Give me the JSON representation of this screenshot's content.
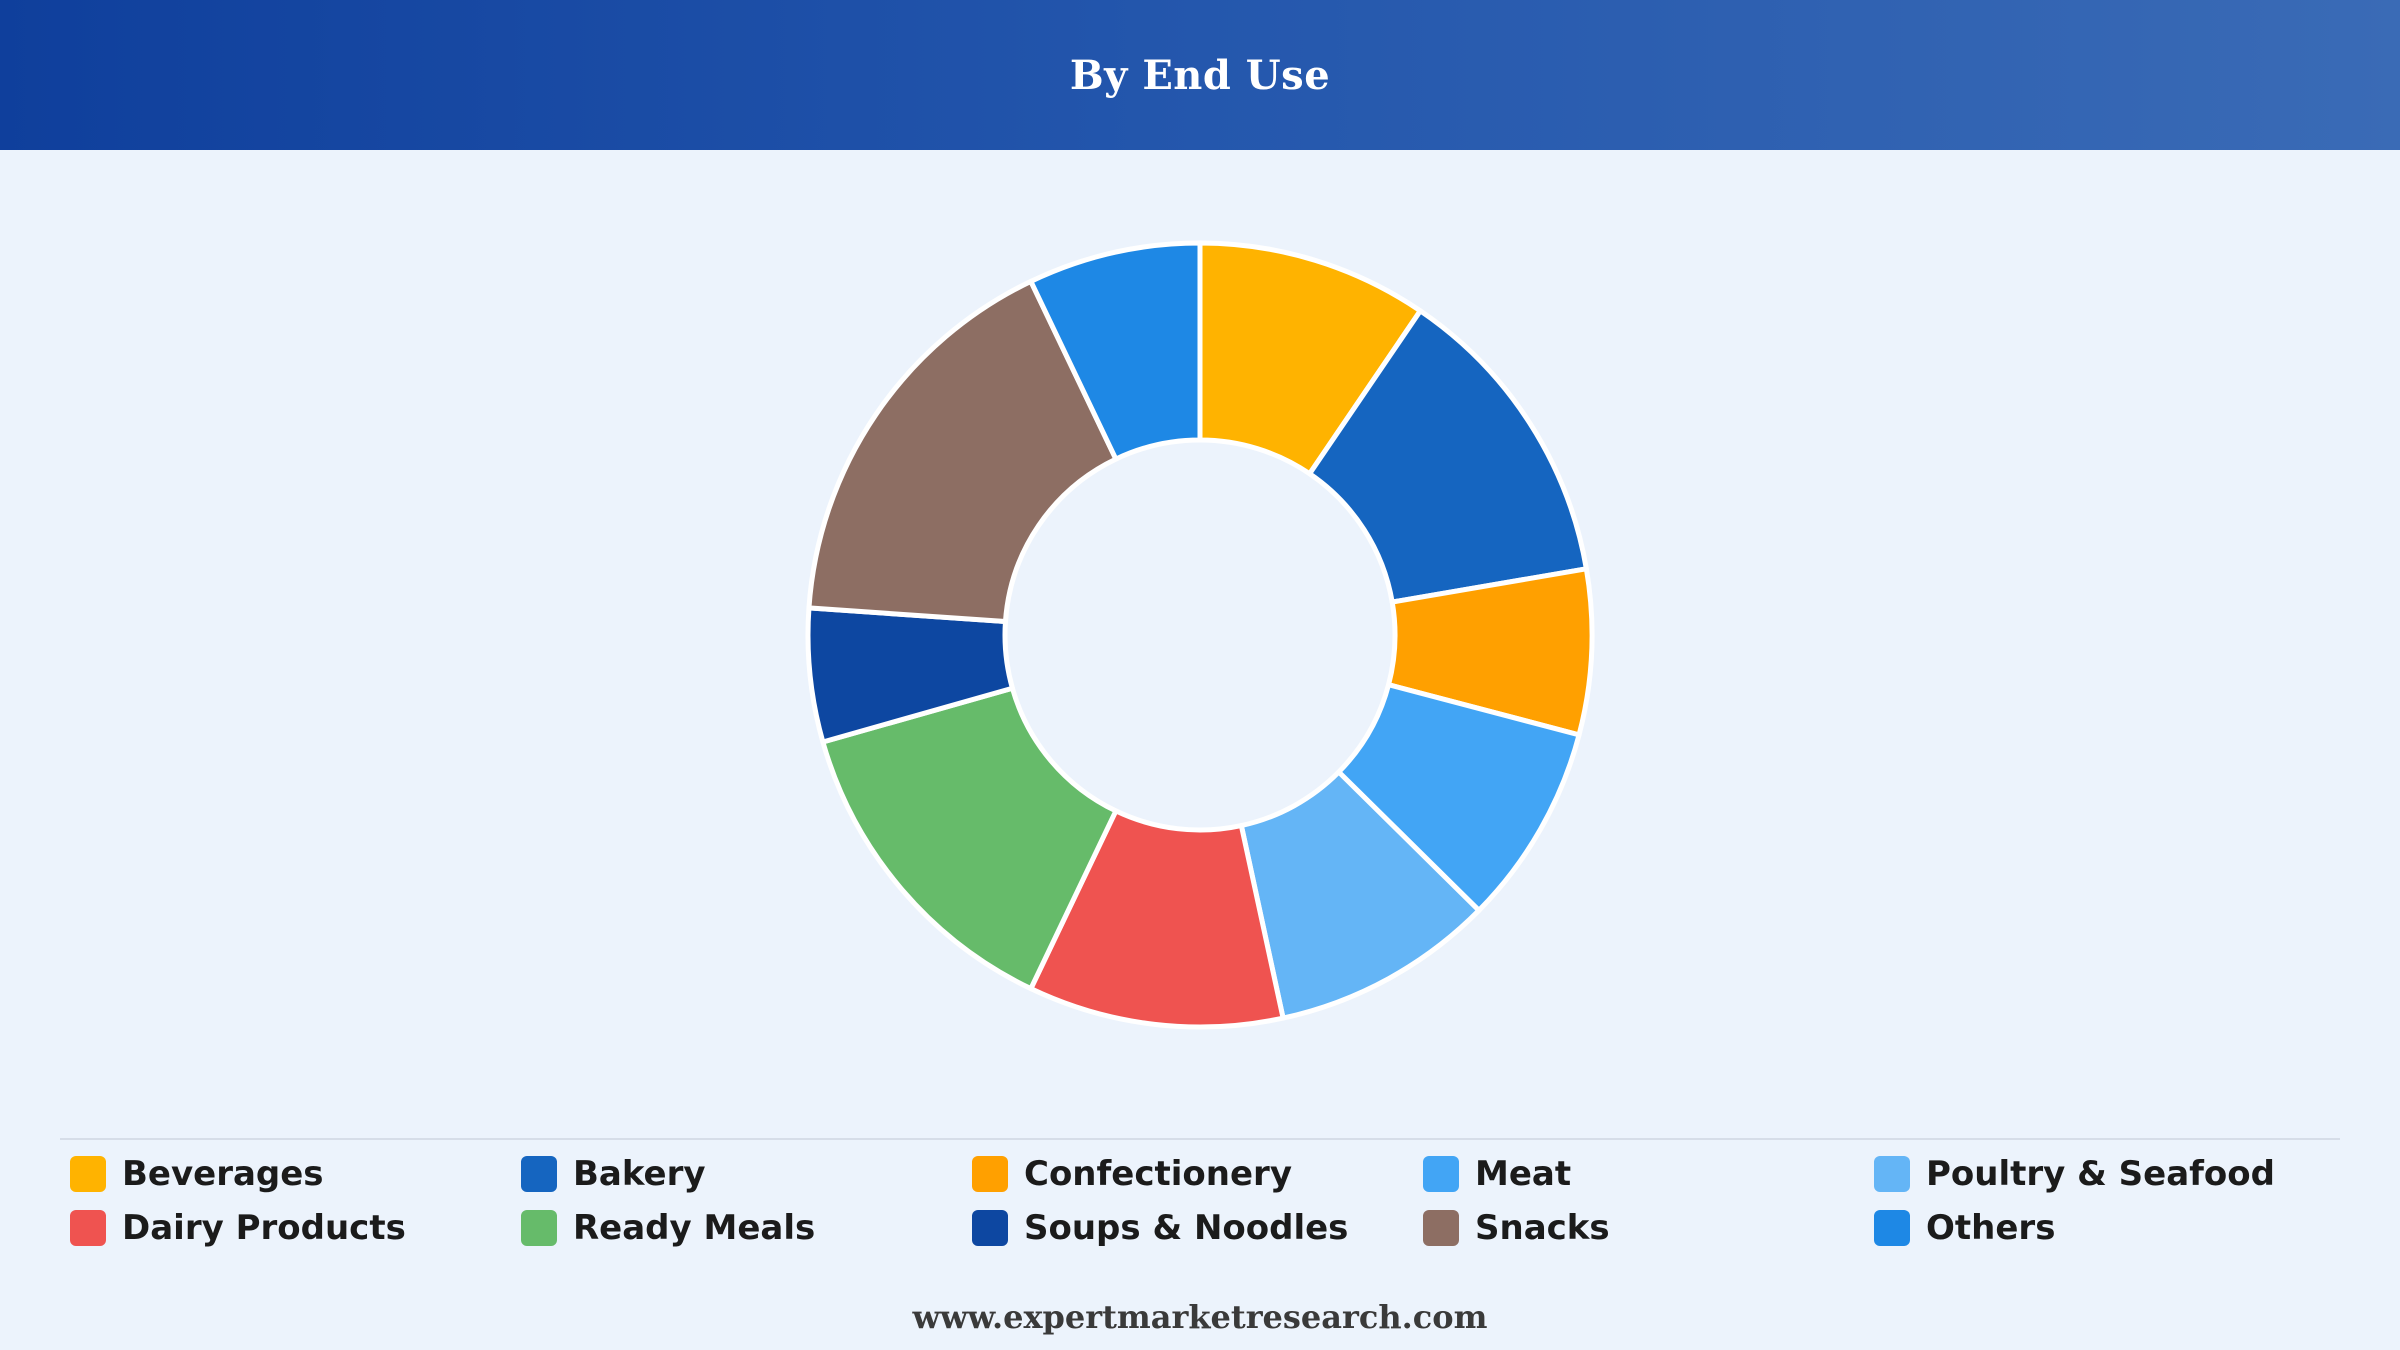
{
  "header": {
    "title": "By End Use"
  },
  "footer": {
    "url": "www.expertmarketresearch.com"
  },
  "chart_data": {
    "type": "pie",
    "title": "By End Use",
    "donut": true,
    "legend_position": "bottom",
    "categories": [
      "Beverages",
      "Bakery",
      "Confectionery",
      "Meat",
      "Poultry & Seafood",
      "Dairy Products",
      "Ready Meals",
      "Soups & Noodles",
      "Snacks",
      "Others"
    ],
    "values": [
      9.5,
      12.8,
      6.8,
      8.3,
      9.2,
      10.5,
      13.5,
      5.5,
      16.8,
      7.1
    ],
    "colors": [
      "#ffb300",
      "#1565c0",
      "#ffa000",
      "#42a5f5",
      "#64b5f6",
      "#ef5350",
      "#66bb6a",
      "#0d47a1",
      "#8d6e63",
      "#1e88e5"
    ]
  }
}
